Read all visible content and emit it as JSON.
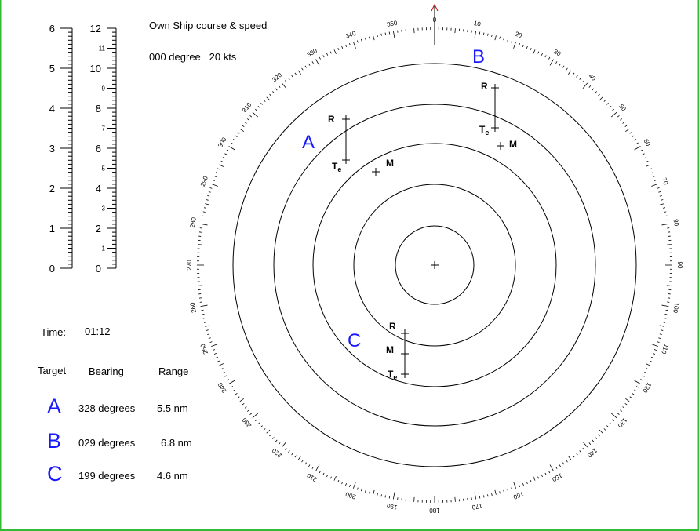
{
  "header": {
    "title": "Own Ship course & speed",
    "course_speed": "000 degree   20 kts"
  },
  "scales": {
    "left": [
      0,
      1,
      2,
      3,
      4,
      5,
      6
    ],
    "right": [
      0,
      1,
      2,
      3,
      4,
      5,
      6,
      7,
      8,
      9,
      10,
      11,
      12
    ]
  },
  "compass": {
    "labels": [
      0,
      10,
      20,
      30,
      40,
      50,
      60,
      70,
      80,
      90,
      100,
      110,
      120,
      130,
      140,
      150,
      160,
      170,
      180,
      190,
      200,
      210,
      220,
      230,
      240,
      250,
      260,
      270,
      280,
      290,
      300,
      310,
      320,
      330,
      340,
      350
    ]
  },
  "time": {
    "label": "Time:",
    "value": "01:12"
  },
  "table": {
    "headers": [
      "Target",
      "Bearing",
      "Range"
    ],
    "rows": [
      [
        "A",
        "328 degrees",
        "5.5 nm"
      ],
      [
        "B",
        "029  degrees",
        "6.8 nm"
      ],
      [
        "C",
        "199  degrees",
        "4.6 nm"
      ]
    ]
  },
  "plot": {
    "targets": [
      "A",
      "B",
      "C"
    ],
    "r": "R",
    "m": "M",
    "te": {
      "main": "T",
      "sub": "e"
    }
  }
}
